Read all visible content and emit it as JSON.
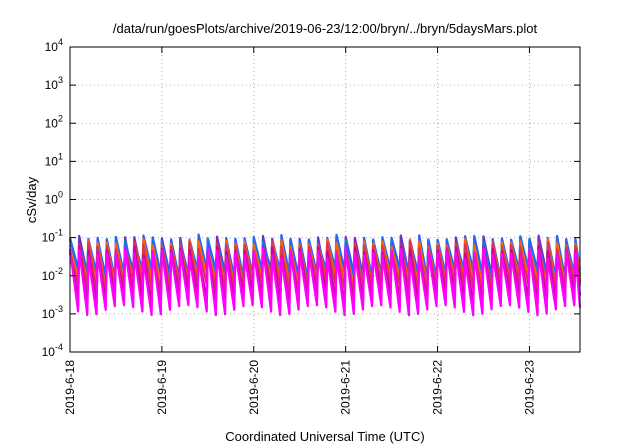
{
  "chart_data": {
    "type": "line",
    "title": "/data/run/goesPlots/archive/2019-06-23/12:00/bryn/../bryn/5daysMars.plot",
    "xlabel": "Coordinated Universal Time (UTC)",
    "ylabel": "cSv/day",
    "yscale": "log",
    "ylim": [
      0.0001,
      10000
    ],
    "y_ticks": [
      {
        "base": "10",
        "exp": "-4",
        "value": 0.0001
      },
      {
        "base": "10",
        "exp": "-3",
        "value": 0.001
      },
      {
        "base": "10",
        "exp": "-2",
        "value": 0.01
      },
      {
        "base": "10",
        "exp": "-1",
        "value": 0.1
      },
      {
        "base": "10",
        "exp": "0",
        "value": 1
      },
      {
        "base": "10",
        "exp": "1",
        "value": 10
      },
      {
        "base": "10",
        "exp": "2",
        "value": 100
      },
      {
        "base": "10",
        "exp": "3",
        "value": 1000
      },
      {
        "base": "10",
        "exp": "4",
        "value": 10000
      }
    ],
    "x_ticks": [
      "2019-6-18",
      "2019-6-19",
      "2019-6-20",
      "2019-6-21",
      "2019-6-22",
      "2019-6-23"
    ],
    "xlim_days": [
      0,
      5.55
    ],
    "grid": true,
    "sawtooth_period_days": 0.1,
    "series": [
      {
        "color": "#ff00ff",
        "peak": 0.04,
        "trough": 0.0013
      },
      {
        "color": "#cc0099",
        "peak": 0.045,
        "trough": 0.0025
      },
      {
        "color": "#dd3355",
        "peak": 0.06,
        "trough": 0.005
      },
      {
        "color": "#ff6600",
        "peak": 0.07,
        "trough": 0.007
      },
      {
        "color": "#2266ff",
        "peak": 0.09,
        "trough": 0.012
      },
      {
        "color": "#009999",
        "peak": 0.075,
        "trough": 0.01
      },
      {
        "color": "#33bbcc",
        "peak": 0.05,
        "trough": 0.006
      },
      {
        "color": "#6633cc",
        "peak": 0.085,
        "trough": 0.009
      }
    ]
  }
}
